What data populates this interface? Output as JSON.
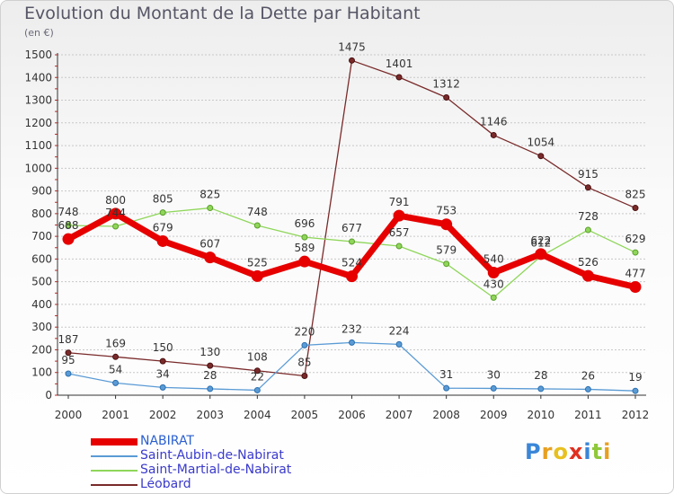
{
  "title": "Evolution du Montant de la Dette par Habitant",
  "unit_label": "(en €)",
  "logo_text": "Proxiti",
  "chart_data": {
    "type": "line",
    "title": "Evolution du Montant de la Dette par Habitant",
    "ylabel": "(en €)",
    "xlabel": "",
    "x": [
      "2000",
      "2001",
      "2002",
      "2003",
      "2004",
      "2005",
      "2006",
      "2007",
      "2008",
      "2009",
      "2010",
      "2011",
      "2012"
    ],
    "ylim": [
      0,
      1500
    ],
    "yticks": [
      0,
      100,
      200,
      300,
      400,
      500,
      600,
      700,
      800,
      900,
      1000,
      1100,
      1200,
      1300,
      1400,
      1500
    ],
    "grid": "horizontal",
    "legend_position": "bottom-left",
    "series": [
      {
        "name": "NABIRAT",
        "color": "#e60000",
        "values": [
          688,
          800,
          679,
          607,
          525,
          589,
          524,
          791,
          753,
          540,
          622,
          526,
          477
        ]
      },
      {
        "name": "Saint-Aubin-de-Nabirat",
        "color": "#5b9bd5",
        "values": [
          95,
          54,
          34,
          28,
          22,
          220,
          232,
          224,
          31,
          30,
          28,
          26,
          19
        ]
      },
      {
        "name": "Saint-Martial-de-Nabirat",
        "color": "#8fd65a",
        "values": [
          748,
          744,
          805,
          825,
          748,
          696,
          677,
          657,
          579,
          430,
          612,
          728,
          629
        ]
      },
      {
        "name": "Léobard",
        "color": "#7a2a2a",
        "values": [
          187,
          169,
          150,
          130,
          108,
          85,
          1475,
          1401,
          1312,
          1146,
          1054,
          915,
          825
        ]
      }
    ]
  }
}
